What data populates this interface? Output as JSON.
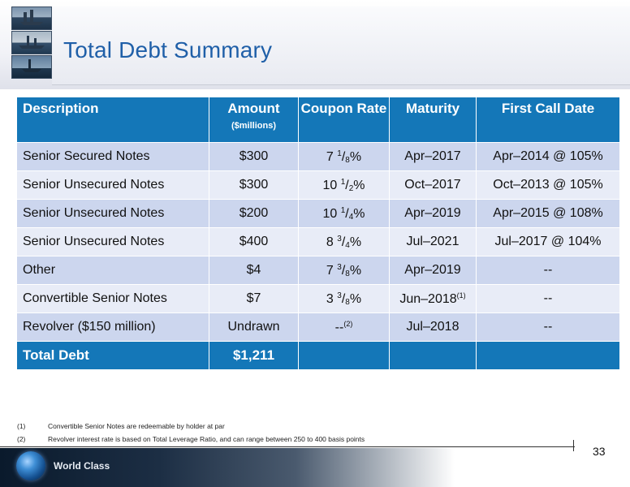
{
  "header": {
    "title": "Total Debt Summary"
  },
  "table": {
    "headers": [
      {
        "label": "Description",
        "sub": ""
      },
      {
        "label": "Amount",
        "sub": "($millions)"
      },
      {
        "label": "Coupon Rate",
        "sub": ""
      },
      {
        "label": "Maturity",
        "sub": ""
      },
      {
        "label": "First Call Date",
        "sub": ""
      }
    ],
    "rows": [
      {
        "description": "Senior Secured Notes",
        "amount": "$300",
        "coupon_whole": "7",
        "coupon_num": "1",
        "coupon_den": "8",
        "coupon_suffix": "%",
        "maturity": "Apr–2017",
        "maturity_note": "",
        "call": "Apr–2014 @ 105%"
      },
      {
        "description": "Senior Unsecured Notes",
        "amount": "$300",
        "coupon_whole": "10",
        "coupon_num": "1",
        "coupon_den": "2",
        "coupon_suffix": "%",
        "maturity": "Oct–2017",
        "maturity_note": "",
        "call": "Oct–2013 @ 105%"
      },
      {
        "description": "Senior Unsecured Notes",
        "amount": "$200",
        "coupon_whole": "10",
        "coupon_num": "1",
        "coupon_den": "4",
        "coupon_suffix": "%",
        "maturity": "Apr–2019",
        "maturity_note": "",
        "call": "Apr–2015 @ 108%"
      },
      {
        "description": "Senior Unsecured Notes",
        "amount": "$400",
        "coupon_whole": "8",
        "coupon_num": "3",
        "coupon_den": "4",
        "coupon_suffix": "%",
        "maturity": "Jul–2021",
        "maturity_note": "",
        "call": "Jul–2017 @ 104%"
      },
      {
        "description": "Other",
        "amount": "$4",
        "coupon_whole": "7",
        "coupon_num": "3",
        "coupon_den": "8",
        "coupon_suffix": "%",
        "maturity": "Apr–2019",
        "maturity_note": "",
        "call": "--"
      },
      {
        "description": "Convertible Senior Notes",
        "amount": "$7",
        "coupon_whole": "3",
        "coupon_num": "3",
        "coupon_den": "8",
        "coupon_suffix": "%",
        "maturity": "Jun–2018",
        "maturity_note": "(1)",
        "call": "--"
      }
    ],
    "revolver": {
      "description": "Revolver ($150 million)",
      "amount": "Undrawn",
      "coupon": "--",
      "coupon_note": "(2)",
      "maturity": "Jul–2018",
      "call": "--"
    },
    "total": {
      "label": "Total Debt",
      "amount": "$1,211"
    }
  },
  "footnotes": [
    {
      "num": "(1)",
      "text": "Convertible Senior Notes are redeemable by holder at par"
    },
    {
      "num": "(2)",
      "text": "Revolver interest rate is based on Total Leverage Ratio, and can range between 250 to 400 basis points"
    }
  ],
  "footer": {
    "page_number": "33",
    "tagline": "World Class"
  },
  "colors": {
    "title": "#1f5fa8",
    "table_header": "#1477b8",
    "row_odd": "#ccd6ee",
    "row_even": "#e8ecf7"
  },
  "icons": [
    "offshore-rig-photo",
    "offshore-rig-photo",
    "offshore-rig-photo",
    "globe-icon"
  ]
}
